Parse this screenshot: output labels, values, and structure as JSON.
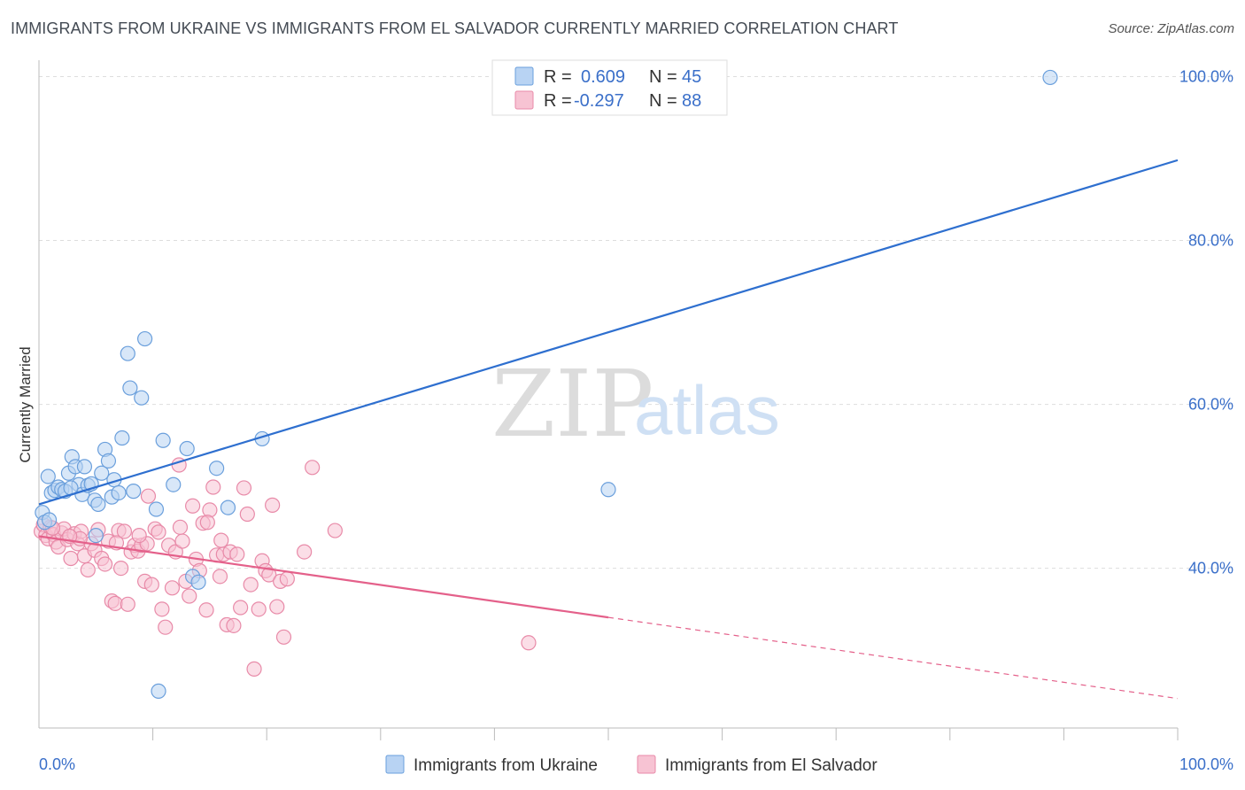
{
  "header": {
    "title": "IMMIGRANTS FROM UKRAINE VS IMMIGRANTS FROM EL SALVADOR CURRENTLY MARRIED CORRELATION CHART",
    "source": "Source: ZipAtlas.com"
  },
  "watermark": {
    "zip": "ZIP",
    "atlas": "atlas"
  },
  "colors": {
    "blue_fill": "#b8d3f3",
    "blue_stroke": "#6a9fdc",
    "blue_line": "#2e6fcf",
    "pink_fill": "#f7c3d3",
    "pink_stroke": "#e88aa8",
    "pink_line": "#e4608a",
    "tick_text": "#3a6fc9",
    "grid": "#dddddd"
  },
  "legend": {
    "rows": [
      {
        "r_label": "R =",
        "r_value": "0.609",
        "n_label": "N =",
        "n_value": "45",
        "series": "blue"
      },
      {
        "r_label": "R =",
        "r_value": "-0.297",
        "n_label": "N =",
        "n_value": "88",
        "series": "pink"
      }
    ]
  },
  "bottom_legend": [
    "Immigrants from Ukraine",
    "Immigrants from El Salvador"
  ],
  "chart_data": {
    "type": "scatter",
    "title": "IMMIGRANTS FROM UKRAINE VS IMMIGRANTS FROM EL SALVADOR CURRENTLY MARRIED CORRELATION CHART",
    "xlabel": "",
    "ylabel": "Currently Married",
    "xlim": [
      0,
      100
    ],
    "ylim": [
      20.5,
      102
    ],
    "x_tick_labels": [
      "0.0%",
      "100.0%"
    ],
    "y_ticks": [
      40,
      60,
      80,
      100
    ],
    "y_tick_labels": [
      "40.0%",
      "60.0%",
      "80.0%",
      "100.0%"
    ],
    "grid": true,
    "legend_position": "top-center",
    "series": [
      {
        "name": "Immigrants from Ukraine",
        "color": "#6a9fdc",
        "trend": {
          "x": [
            0,
            100
          ],
          "y": [
            47.8,
            89.8
          ],
          "dashed_from": null
        },
        "points": [
          [
            0.3,
            46.8
          ],
          [
            0.5,
            45.6
          ],
          [
            0.8,
            51.2
          ],
          [
            1.1,
            49.2
          ],
          [
            1.4,
            49.5
          ],
          [
            1.7,
            49.9
          ],
          [
            2.0,
            49.6
          ],
          [
            2.3,
            49.4
          ],
          [
            2.6,
            51.6
          ],
          [
            2.9,
            53.6
          ],
          [
            3.2,
            52.4
          ],
          [
            3.5,
            50.2
          ],
          [
            3.8,
            49.0
          ],
          [
            4.0,
            52.4
          ],
          [
            4.3,
            50.1
          ],
          [
            4.6,
            50.3
          ],
          [
            4.9,
            48.3
          ],
          [
            5.2,
            47.8
          ],
          [
            5.5,
            51.6
          ],
          [
            5.8,
            54.5
          ],
          [
            6.1,
            53.1
          ],
          [
            6.4,
            48.7
          ],
          [
            6.6,
            50.8
          ],
          [
            7.0,
            49.2
          ],
          [
            7.3,
            55.9
          ],
          [
            7.8,
            66.2
          ],
          [
            8.0,
            62.0
          ],
          [
            8.3,
            49.4
          ],
          [
            9.0,
            60.8
          ],
          [
            9.3,
            68.0
          ],
          [
            10.3,
            47.2
          ],
          [
            10.9,
            55.6
          ],
          [
            11.8,
            50.2
          ],
          [
            13.0,
            54.6
          ],
          [
            13.5,
            39.0
          ],
          [
            14.0,
            38.3
          ],
          [
            15.6,
            52.2
          ],
          [
            16.6,
            47.4
          ],
          [
            19.6,
            55.8
          ],
          [
            50.0,
            49.6
          ],
          [
            88.8,
            99.9
          ],
          [
            10.5,
            25.0
          ],
          [
            2.8,
            49.8
          ],
          [
            0.9,
            45.9
          ],
          [
            5.0,
            44.0
          ]
        ]
      },
      {
        "name": "Immigrants from El Salvador",
        "color": "#e88aa8",
        "trend": {
          "x": [
            0,
            50,
            100
          ],
          "y": [
            43.9,
            34.0,
            24.1
          ],
          "dashed_from": 50
        },
        "points": [
          [
            0.2,
            44.5
          ],
          [
            0.4,
            45.3
          ],
          [
            0.6,
            44.0
          ],
          [
            0.8,
            43.6
          ],
          [
            1.0,
            45.0
          ],
          [
            1.3,
            44.1
          ],
          [
            1.5,
            43.2
          ],
          [
            1.7,
            42.6
          ],
          [
            2.0,
            44.3
          ],
          [
            2.2,
            44.8
          ],
          [
            2.5,
            43.5
          ],
          [
            2.8,
            41.2
          ],
          [
            3.1,
            44.2
          ],
          [
            3.4,
            43.0
          ],
          [
            3.7,
            44.5
          ],
          [
            4.0,
            41.5
          ],
          [
            4.3,
            39.8
          ],
          [
            4.6,
            43.0
          ],
          [
            4.9,
            42.2
          ],
          [
            5.2,
            44.7
          ],
          [
            5.5,
            41.2
          ],
          [
            5.8,
            40.5
          ],
          [
            6.1,
            43.3
          ],
          [
            6.4,
            36.0
          ],
          [
            6.7,
            35.7
          ],
          [
            7.0,
            44.6
          ],
          [
            7.2,
            40.0
          ],
          [
            7.5,
            44.5
          ],
          [
            7.8,
            35.6
          ],
          [
            8.1,
            42.0
          ],
          [
            8.4,
            42.8
          ],
          [
            8.7,
            42.1
          ],
          [
            9.0,
            42.8
          ],
          [
            9.3,
            38.4
          ],
          [
            9.6,
            48.8
          ],
          [
            9.9,
            38.0
          ],
          [
            10.2,
            44.8
          ],
          [
            10.5,
            44.4
          ],
          [
            10.8,
            35.0
          ],
          [
            11.1,
            32.8
          ],
          [
            11.4,
            42.8
          ],
          [
            11.7,
            37.6
          ],
          [
            12.0,
            42.0
          ],
          [
            12.3,
            52.6
          ],
          [
            12.6,
            43.3
          ],
          [
            12.9,
            38.4
          ],
          [
            13.2,
            36.6
          ],
          [
            13.5,
            47.6
          ],
          [
            13.8,
            41.1
          ],
          [
            14.1,
            39.7
          ],
          [
            14.4,
            45.5
          ],
          [
            14.7,
            34.9
          ],
          [
            15.0,
            47.1
          ],
          [
            15.3,
            49.9
          ],
          [
            15.6,
            41.6
          ],
          [
            15.9,
            39.0
          ],
          [
            16.2,
            41.7
          ],
          [
            16.5,
            33.1
          ],
          [
            16.8,
            42.0
          ],
          [
            17.1,
            33.0
          ],
          [
            17.4,
            41.7
          ],
          [
            17.7,
            35.2
          ],
          [
            18.0,
            49.8
          ],
          [
            18.3,
            46.6
          ],
          [
            18.6,
            38.0
          ],
          [
            18.9,
            27.7
          ],
          [
            19.3,
            35.0
          ],
          [
            19.6,
            40.9
          ],
          [
            19.9,
            39.7
          ],
          [
            20.2,
            39.2
          ],
          [
            20.5,
            47.7
          ],
          [
            20.9,
            35.3
          ],
          [
            21.2,
            38.4
          ],
          [
            21.5,
            31.6
          ],
          [
            21.8,
            38.7
          ],
          [
            23.3,
            42.0
          ],
          [
            24.0,
            52.3
          ],
          [
            26.0,
            44.6
          ],
          [
            43.0,
            30.9
          ],
          [
            3.6,
            43.6
          ],
          [
            2.7,
            43.9
          ],
          [
            6.8,
            43.1
          ],
          [
            9.5,
            43.0
          ],
          [
            12.4,
            45.0
          ],
          [
            14.8,
            45.6
          ],
          [
            1.2,
            44.9
          ],
          [
            8.8,
            44.0
          ],
          [
            16.0,
            43.4
          ]
        ]
      }
    ]
  }
}
